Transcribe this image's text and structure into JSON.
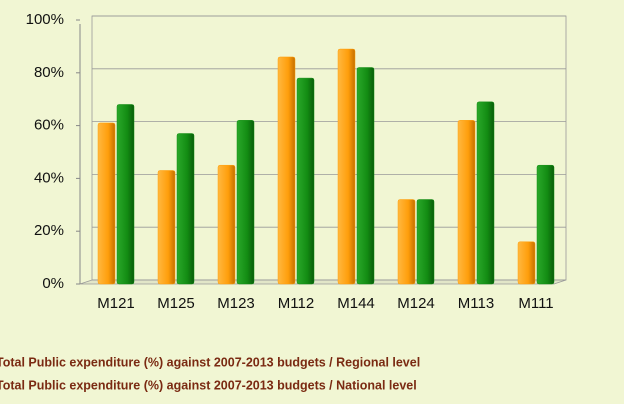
{
  "chart_data": {
    "type": "bar",
    "categories": [
      "M121",
      "M125",
      "M123",
      "M112",
      "M144",
      "M124",
      "M113",
      "M111"
    ],
    "series": [
      {
        "name": "Total Public expenditure (%) against 2007-2013 budgets / Regional level",
        "color": "#ff9e0b",
        "values": [
          61,
          43,
          45,
          86,
          89,
          32,
          62,
          16
        ]
      },
      {
        "name": "Total Public expenditure (%) against 2007-2013 budgets / National level",
        "color": "#138c13",
        "values": [
          68,
          57,
          62,
          78,
          82,
          32,
          69,
          45
        ]
      }
    ],
    "ylim": [
      0,
      100
    ],
    "yticks": [
      {
        "value": 0,
        "label": "0%"
      },
      {
        "value": 20,
        "label": "20%"
      },
      {
        "value": 40,
        "label": "40%"
      },
      {
        "value": 60,
        "label": "60%"
      },
      {
        "value": 80,
        "label": "80%"
      },
      {
        "value": 100,
        "label": "100%"
      }
    ],
    "grid": true
  }
}
